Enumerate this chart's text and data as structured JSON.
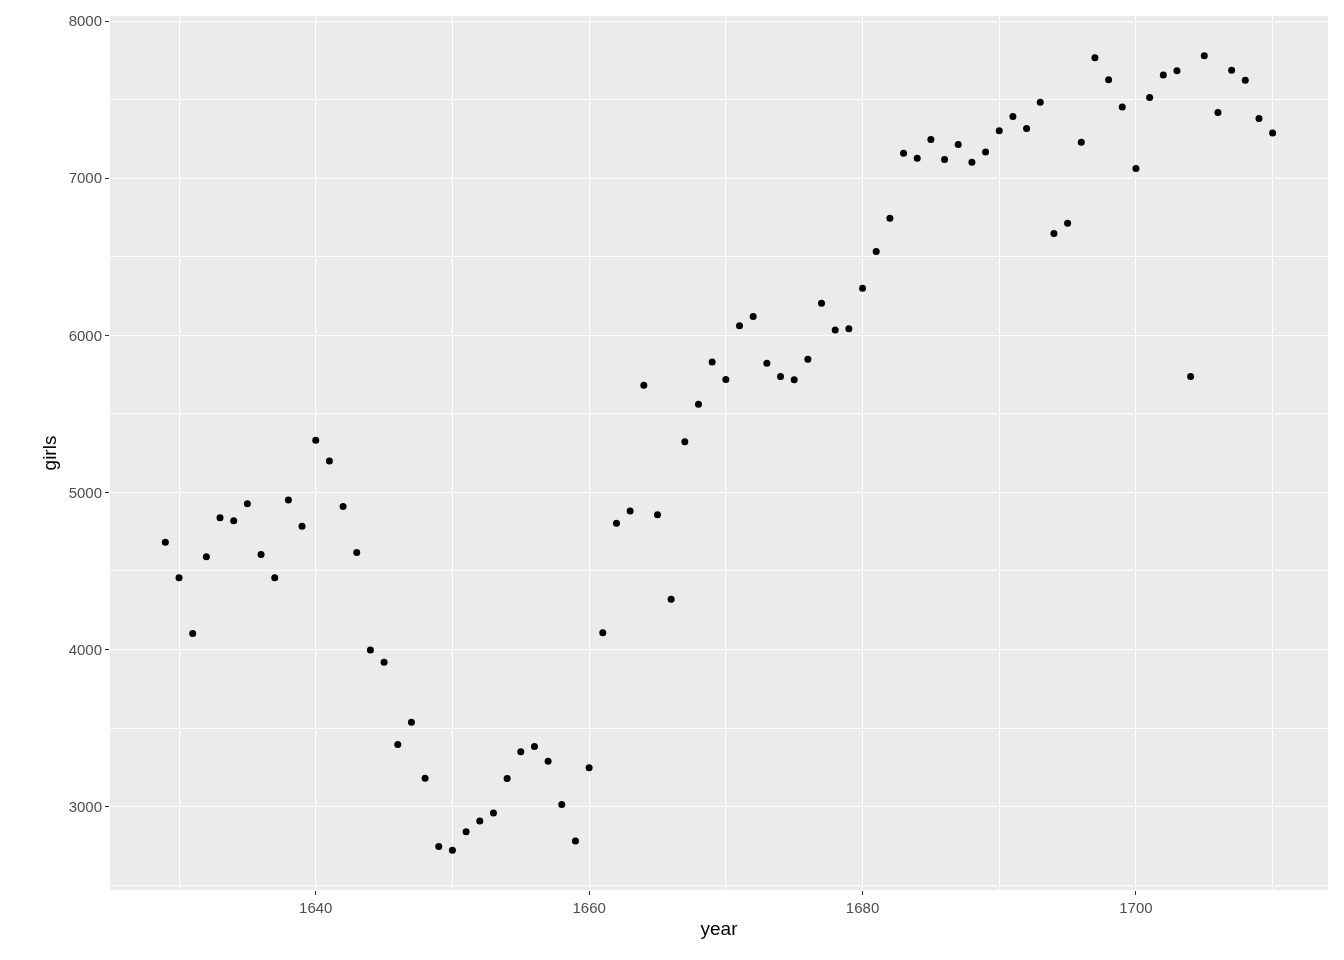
{
  "chart_data": {
    "type": "scatter",
    "xlabel": "year",
    "ylabel": "girls",
    "x": [
      1629,
      1630,
      1631,
      1632,
      1633,
      1634,
      1635,
      1636,
      1637,
      1638,
      1639,
      1640,
      1641,
      1642,
      1643,
      1644,
      1645,
      1646,
      1647,
      1648,
      1649,
      1650,
      1651,
      1652,
      1653,
      1654,
      1655,
      1656,
      1657,
      1658,
      1659,
      1660,
      1661,
      1662,
      1663,
      1664,
      1665,
      1666,
      1667,
      1668,
      1669,
      1670,
      1671,
      1672,
      1673,
      1674,
      1675,
      1676,
      1677,
      1678,
      1679,
      1680,
      1681,
      1682,
      1683,
      1684,
      1685,
      1686,
      1687,
      1688,
      1689,
      1690,
      1691,
      1692,
      1693,
      1694,
      1695,
      1696,
      1697,
      1698,
      1699,
      1700,
      1701,
      1702,
      1703,
      1704,
      1705,
      1706,
      1707,
      1708,
      1709,
      1710
    ],
    "series": [
      {
        "color": "#000000",
        "values": [
          4683,
          4457,
          4102,
          4590,
          4839,
          4820,
          4928,
          4605,
          4457,
          4952,
          4784,
          5332,
          5200,
          4910,
          4617,
          3997,
          3919,
          3395,
          3536,
          3181,
          2746,
          2722,
          2840,
          2908,
          2959,
          3179,
          3349,
          3382,
          3289,
          3013,
          2781,
          3247,
          4107,
          4803,
          4881,
          5681,
          4858,
          4319,
          5322,
          5560,
          5829,
          5719,
          6061,
          6120,
          5822,
          5738,
          5717,
          5847,
          6203,
          6033,
          6041,
          6299,
          6533,
          6744,
          7158,
          7127,
          7246,
          7119,
          7214,
          7101,
          7167,
          7302,
          7392,
          7316,
          7483,
          6647,
          6713,
          7229,
          7767,
          7626,
          7452,
          7061,
          7514,
          7656,
          7683,
          5738,
          7779,
          7417,
          7687,
          7623,
          7380,
          7288
        ]
      }
    ],
    "xlim": [
      1624.95,
      1714.05
    ],
    "ylim": [
      2469,
      8032
    ],
    "xticks": [
      1640,
      1660,
      1680,
      1700
    ],
    "yticks": [
      3000,
      4000,
      5000,
      6000,
      7000,
      8000
    ],
    "grid": true,
    "marker": "circle"
  }
}
